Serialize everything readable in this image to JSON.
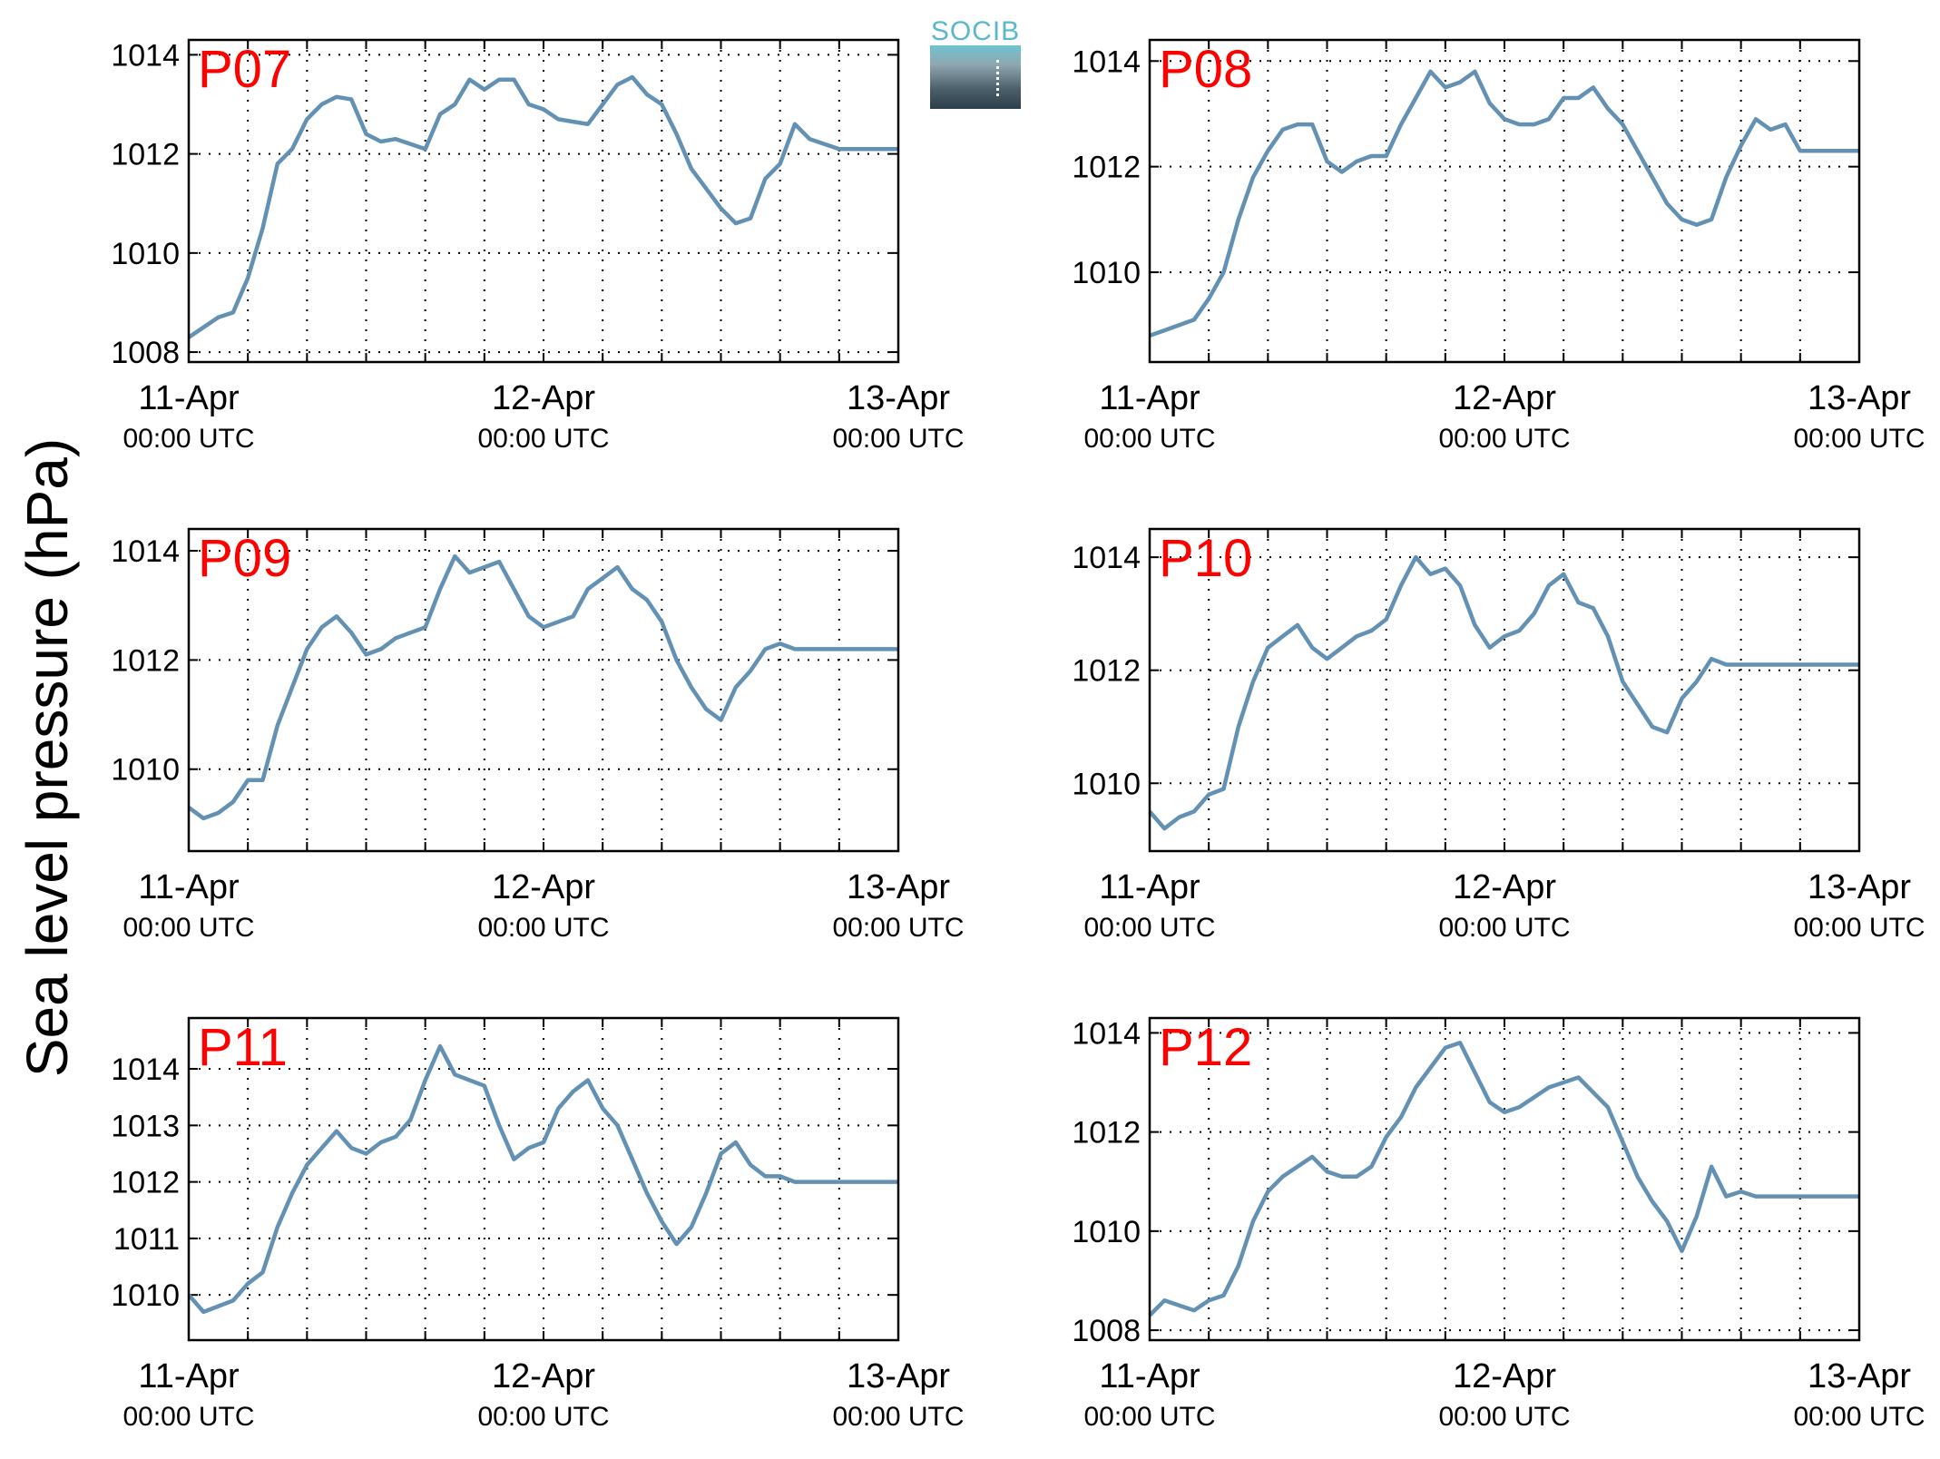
{
  "ylabel": "Sea level pressure (hPa)",
  "logo": {
    "text": "SOCIB",
    "colors": {
      "top": "#5ab8c9",
      "bottom": "#2c3e4a"
    }
  },
  "line_color": "#6391b4",
  "station_label_color": "#ff0000",
  "chart_data": [
    {
      "type": "line",
      "name": "P07",
      "xlim": [
        0,
        48
      ],
      "ylim": [
        1007.8,
        1014.3
      ],
      "yticks": [
        1008,
        1010,
        1012,
        1014
      ],
      "xticks": [
        {
          "x": 0,
          "label": "11-Apr",
          "sub": "00:00 UTC"
        },
        {
          "x": 24,
          "label": "12-Apr",
          "sub": "00:00 UTC"
        },
        {
          "x": 48,
          "label": "13-Apr",
          "sub": "00:00 UTC"
        }
      ],
      "grid": true,
      "series": [
        {
          "x": [
            0,
            1,
            2,
            3,
            4,
            5,
            6,
            7,
            8,
            9,
            10,
            11,
            12,
            13,
            14,
            15,
            16,
            17,
            18,
            19,
            20,
            21,
            22,
            23,
            24,
            25,
            26,
            27,
            28,
            29,
            30,
            31,
            32,
            33,
            34,
            35,
            36,
            37,
            38,
            39,
            40,
            41,
            42,
            43,
            44,
            45,
            46,
            47,
            48
          ],
          "values": [
            1008.3,
            1008.5,
            1008.7,
            1008.8,
            1009.5,
            1010.5,
            1011.8,
            1012.1,
            1012.7,
            1013.0,
            1013.15,
            1013.1,
            1012.4,
            1012.25,
            1012.3,
            1012.2,
            1012.1,
            1012.8,
            1013.0,
            1013.5,
            1013.3,
            1013.5,
            1013.5,
            1013.0,
            1012.9,
            1012.7,
            1012.65,
            1012.6,
            1013.0,
            1013.4,
            1013.55,
            1013.2,
            1013.0,
            1012.4,
            1011.7,
            1011.3,
            1010.9,
            1010.6,
            1010.7,
            1011.5,
            1011.8,
            1012.6,
            1012.3,
            1012.2,
            1012.1,
            1012.1,
            1012.1,
            1012.1,
            1012.1
          ]
        }
      ]
    },
    {
      "type": "line",
      "name": "P08",
      "xlim": [
        0,
        48
      ],
      "ylim": [
        1008.3,
        1014.4
      ],
      "yticks": [
        1010,
        1012,
        1014
      ],
      "xticks": [
        {
          "x": 0,
          "label": "11-Apr",
          "sub": "00:00 UTC"
        },
        {
          "x": 24,
          "label": "12-Apr",
          "sub": "00:00 UTC"
        },
        {
          "x": 48,
          "label": "13-Apr",
          "sub": "00:00 UTC"
        }
      ],
      "grid": true,
      "series": [
        {
          "x": [
            0,
            1,
            2,
            3,
            4,
            5,
            6,
            7,
            8,
            9,
            10,
            11,
            12,
            13,
            14,
            15,
            16,
            17,
            18,
            19,
            20,
            21,
            22,
            23,
            24,
            25,
            26,
            27,
            28,
            29,
            30,
            31,
            32,
            33,
            34,
            35,
            36,
            37,
            38,
            39,
            40,
            41,
            42,
            43,
            44,
            45,
            46,
            47,
            48
          ],
          "values": [
            1008.8,
            1008.9,
            1009.0,
            1009.1,
            1009.5,
            1010.0,
            1011.0,
            1011.8,
            1012.3,
            1012.7,
            1012.8,
            1012.8,
            1012.1,
            1011.9,
            1012.1,
            1012.2,
            1012.2,
            1012.8,
            1013.3,
            1013.8,
            1013.5,
            1013.6,
            1013.8,
            1013.2,
            1012.9,
            1012.8,
            1012.8,
            1012.9,
            1013.3,
            1013.3,
            1013.5,
            1013.1,
            1012.8,
            1012.3,
            1011.8,
            1011.3,
            1011.0,
            1010.9,
            1011.0,
            1011.8,
            1012.4,
            1012.9,
            1012.7,
            1012.8,
            1012.3,
            1012.3,
            1012.3,
            1012.3,
            1012.3
          ]
        }
      ]
    },
    {
      "type": "line",
      "name": "P09",
      "xlim": [
        0,
        48
      ],
      "ylim": [
        1008.5,
        1014.4
      ],
      "yticks": [
        1010,
        1012,
        1014
      ],
      "xticks": [
        {
          "x": 0,
          "label": "11-Apr",
          "sub": "00:00 UTC"
        },
        {
          "x": 24,
          "label": "12-Apr",
          "sub": "00:00 UTC"
        },
        {
          "x": 48,
          "label": "13-Apr",
          "sub": "00:00 UTC"
        }
      ],
      "grid": true,
      "series": [
        {
          "x": [
            0,
            1,
            2,
            3,
            4,
            5,
            6,
            7,
            8,
            9,
            10,
            11,
            12,
            13,
            14,
            15,
            16,
            17,
            18,
            19,
            20,
            21,
            22,
            23,
            24,
            25,
            26,
            27,
            28,
            29,
            30,
            31,
            32,
            33,
            34,
            35,
            36,
            37,
            38,
            39,
            40,
            41,
            42,
            43,
            44,
            45,
            46,
            47,
            48
          ],
          "values": [
            1009.3,
            1009.1,
            1009.2,
            1009.4,
            1009.8,
            1009.8,
            1010.8,
            1011.5,
            1012.2,
            1012.6,
            1012.8,
            1012.5,
            1012.1,
            1012.2,
            1012.4,
            1012.5,
            1012.6,
            1013.3,
            1013.9,
            1013.6,
            1013.7,
            1013.8,
            1013.3,
            1012.8,
            1012.6,
            1012.7,
            1012.8,
            1013.3,
            1013.5,
            1013.7,
            1013.3,
            1013.1,
            1012.7,
            1012.0,
            1011.5,
            1011.1,
            1010.9,
            1011.5,
            1011.8,
            1012.2,
            1012.3,
            1012.2,
            1012.2,
            1012.2,
            1012.2,
            1012.2,
            1012.2,
            1012.2,
            1012.2
          ]
        }
      ]
    },
    {
      "type": "line",
      "name": "P10",
      "xlim": [
        0,
        48
      ],
      "ylim": [
        1008.8,
        1014.5
      ],
      "yticks": [
        1010,
        1012,
        1014
      ],
      "xticks": [
        {
          "x": 0,
          "label": "11-Apr",
          "sub": "00:00 UTC"
        },
        {
          "x": 24,
          "label": "12-Apr",
          "sub": "00:00 UTC"
        },
        {
          "x": 48,
          "label": "13-Apr",
          "sub": "00:00 UTC"
        }
      ],
      "grid": true,
      "series": [
        {
          "x": [
            0,
            1,
            2,
            3,
            4,
            5,
            6,
            7,
            8,
            9,
            10,
            11,
            12,
            13,
            14,
            15,
            16,
            17,
            18,
            19,
            20,
            21,
            22,
            23,
            24,
            25,
            26,
            27,
            28,
            29,
            30,
            31,
            32,
            33,
            34,
            35,
            36,
            37,
            38,
            39,
            40,
            41,
            42,
            43,
            44,
            45,
            46,
            47,
            48
          ],
          "values": [
            1009.5,
            1009.2,
            1009.4,
            1009.5,
            1009.8,
            1009.9,
            1011.0,
            1011.8,
            1012.4,
            1012.6,
            1012.8,
            1012.4,
            1012.2,
            1012.4,
            1012.6,
            1012.7,
            1012.9,
            1013.5,
            1014.0,
            1013.7,
            1013.8,
            1013.5,
            1012.8,
            1012.4,
            1012.6,
            1012.7,
            1013.0,
            1013.5,
            1013.7,
            1013.2,
            1013.1,
            1012.6,
            1011.8,
            1011.4,
            1011.0,
            1010.9,
            1011.5,
            1011.8,
            1012.2,
            1012.1,
            1012.1,
            1012.1,
            1012.1,
            1012.1,
            1012.1,
            1012.1,
            1012.1,
            1012.1,
            1012.1
          ]
        }
      ]
    },
    {
      "type": "line",
      "name": "P11",
      "xlim": [
        0,
        48
      ],
      "ylim": [
        1009.2,
        1014.9
      ],
      "yticks": [
        1010,
        1011,
        1012,
        1013,
        1014
      ],
      "xticks": [
        {
          "x": 0,
          "label": "11-Apr",
          "sub": "00:00 UTC"
        },
        {
          "x": 24,
          "label": "12-Apr",
          "sub": "00:00 UTC"
        },
        {
          "x": 48,
          "label": "13-Apr",
          "sub": "00:00 UTC"
        }
      ],
      "grid": true,
      "series": [
        {
          "x": [
            0,
            1,
            2,
            3,
            4,
            5,
            6,
            7,
            8,
            9,
            10,
            11,
            12,
            13,
            14,
            15,
            16,
            17,
            18,
            19,
            20,
            21,
            22,
            23,
            24,
            25,
            26,
            27,
            28,
            29,
            30,
            31,
            32,
            33,
            34,
            35,
            36,
            37,
            38,
            39,
            40,
            41,
            42,
            43,
            44,
            45,
            46,
            47,
            48
          ],
          "values": [
            1010.0,
            1009.7,
            1009.8,
            1009.9,
            1010.2,
            1010.4,
            1011.2,
            1011.8,
            1012.3,
            1012.6,
            1012.9,
            1012.6,
            1012.5,
            1012.7,
            1012.8,
            1013.1,
            1013.8,
            1014.4,
            1013.9,
            1013.8,
            1013.7,
            1013.0,
            1012.4,
            1012.6,
            1012.7,
            1013.3,
            1013.6,
            1013.8,
            1013.3,
            1013.0,
            1012.4,
            1011.8,
            1011.3,
            1010.9,
            1011.2,
            1011.8,
            1012.5,
            1012.7,
            1012.3,
            1012.1,
            1012.1,
            1012.0,
            1012.0,
            1012.0,
            1012.0,
            1012.0,
            1012.0,
            1012.0,
            1012.0
          ]
        }
      ]
    },
    {
      "type": "line",
      "name": "P12",
      "xlim": [
        0,
        48
      ],
      "ylim": [
        1007.8,
        1014.3
      ],
      "yticks": [
        1008,
        1010,
        1012,
        1014
      ],
      "xticks": [
        {
          "x": 0,
          "label": "11-Apr",
          "sub": "00:00 UTC"
        },
        {
          "x": 24,
          "label": "12-Apr",
          "sub": "00:00 UTC"
        },
        {
          "x": 48,
          "label": "13-Apr",
          "sub": "00:00 UTC"
        }
      ],
      "grid": true,
      "series": [
        {
          "x": [
            0,
            1,
            2,
            3,
            4,
            5,
            6,
            7,
            8,
            9,
            10,
            11,
            12,
            13,
            14,
            15,
            16,
            17,
            18,
            19,
            20,
            21,
            22,
            23,
            24,
            25,
            26,
            27,
            28,
            29,
            30,
            31,
            32,
            33,
            34,
            35,
            36,
            37,
            38,
            39,
            40,
            41,
            42,
            43,
            44,
            45,
            46,
            47,
            48
          ],
          "values": [
            1008.3,
            1008.6,
            1008.5,
            1008.4,
            1008.6,
            1008.7,
            1009.3,
            1010.2,
            1010.8,
            1011.1,
            1011.3,
            1011.5,
            1011.2,
            1011.1,
            1011.1,
            1011.3,
            1011.9,
            1012.3,
            1012.9,
            1013.3,
            1013.7,
            1013.8,
            1013.2,
            1012.6,
            1012.4,
            1012.5,
            1012.7,
            1012.9,
            1013.0,
            1013.1,
            1012.8,
            1012.5,
            1011.8,
            1011.1,
            1010.6,
            1010.2,
            1009.6,
            1010.3,
            1011.3,
            1010.7,
            1010.8,
            1010.7,
            1010.7,
            1010.7,
            1010.7,
            1010.7,
            1010.7,
            1010.7,
            1010.7
          ]
        }
      ]
    }
  ]
}
